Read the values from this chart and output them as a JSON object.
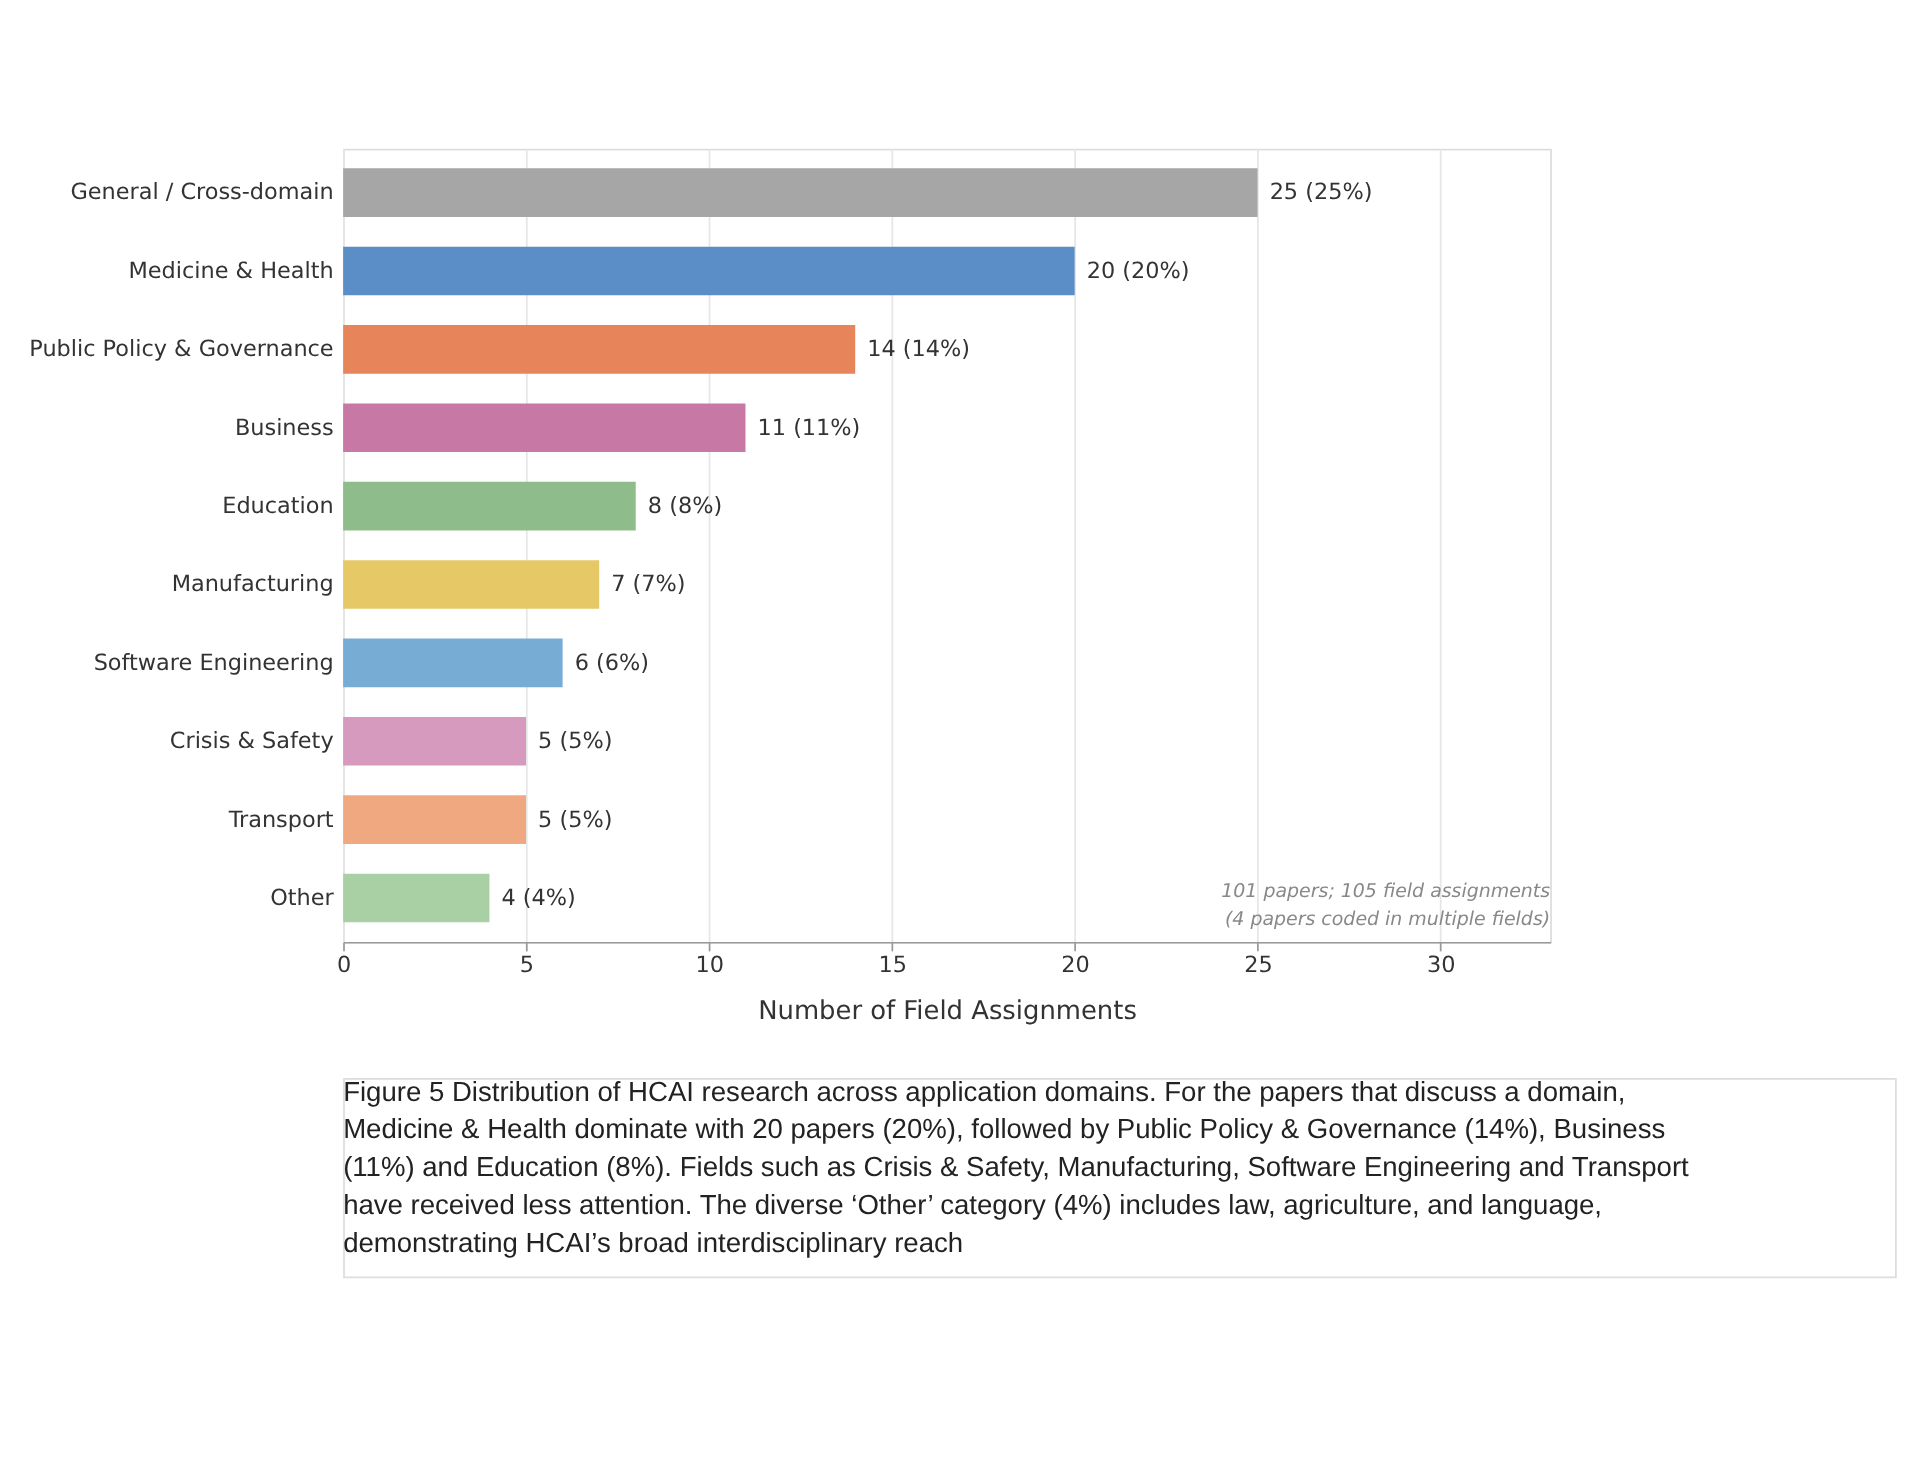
{
  "chart_data": {
    "type": "bar",
    "orientation": "horizontal",
    "xlabel": "Number of Field Assignments",
    "categories": [
      "General / Cross-domain",
      "Medicine & Health",
      "Public Policy & Governance",
      "Business",
      "Education",
      "Manufacturing",
      "Software Engineering",
      "Crisis & Safety",
      "Transport",
      "Other"
    ],
    "values": [
      25,
      20,
      14,
      11,
      8,
      7,
      6,
      5,
      5,
      4
    ],
    "colors": [
      "#a6a6a6",
      "#5b8ec6",
      "#e8845a",
      "#c878a4",
      "#8fbc8b",
      "#e6c866",
      "#77acd4",
      "#d59abd",
      "#f0a880",
      "#a8d0a4"
    ],
    "value_labels": [
      "25  (25%)",
      "20  (20%)",
      "14  (14%)",
      "11  (11%)",
      "8  (8%)",
      "7  (7%)",
      "6  (6%)",
      "5  (5%)",
      "5  (5%)",
      "4  (4%)"
    ],
    "xlim": [
      0,
      33
    ],
    "xticks": [
      0,
      5,
      10,
      15,
      20,
      25,
      30
    ],
    "grid": "x",
    "annotations": [
      "101 papers; 105 field assignments\n(4 papers coded in multiple fields)",
      "Figure 5  Distribution of HCAI research across application domains. For the papers that discuss a domain, Medicine & Health dominate with 20 papers (20%), followed by Public Policy & Governance (14%), Business (11%) and Education (8%). Fields such as Crisis & Safety, Manufacturing, Software Engineering and Transport have received less attention. The diverse ‘Other’ category (4%) includes law, agriculture, and language, demonstrating HCAI’s broad interdisciplinary reach"
    ]
  }
}
